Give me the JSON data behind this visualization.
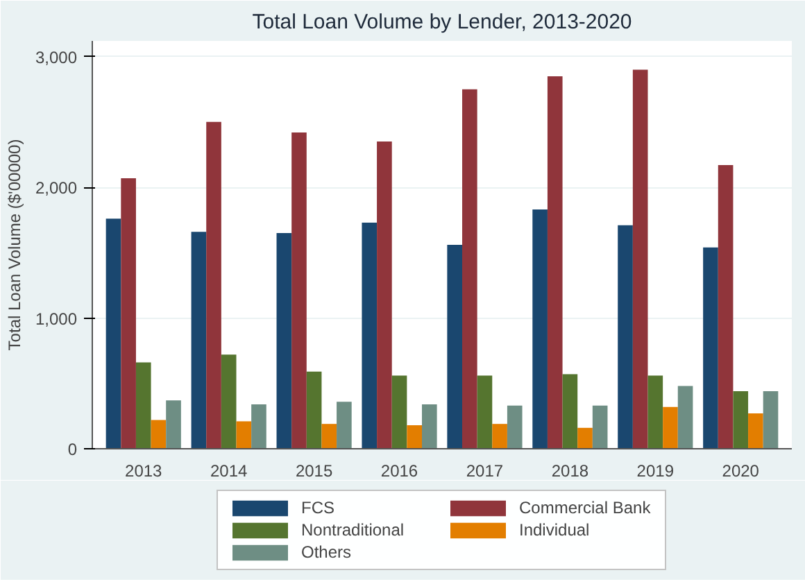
{
  "chart_data": {
    "type": "bar",
    "title": "Total Loan Volume by Lender, 2013-2020",
    "ylabel": "Total Loan Volume ($'00000)",
    "categories": [
      "2013",
      "2014",
      "2015",
      "2016",
      "2017",
      "2018",
      "2019",
      "2020"
    ],
    "series": [
      {
        "name": "FCS",
        "color": "#1a476f",
        "values": [
          1760,
          1660,
          1650,
          1730,
          1560,
          1830,
          1710,
          1540
        ]
      },
      {
        "name": "Commercial Bank",
        "color": "#90353b",
        "values": [
          2070,
          2500,
          2420,
          2350,
          2750,
          2850,
          2900,
          2170
        ]
      },
      {
        "name": "Nontraditional",
        "color": "#55752f",
        "values": [
          660,
          720,
          590,
          560,
          560,
          570,
          560,
          440
        ]
      },
      {
        "name": "Individual",
        "color": "#e37e00",
        "values": [
          220,
          210,
          190,
          180,
          190,
          160,
          320,
          270
        ]
      },
      {
        "name": "Others",
        "color": "#6e8e84",
        "values": [
          370,
          340,
          360,
          340,
          330,
          330,
          480,
          440
        ]
      }
    ],
    "ylim": [
      0,
      3120
    ],
    "yticks": [
      0,
      {
        "value": 1000,
        "label": "1,000"
      },
      {
        "value": 2000,
        "label": "2,000"
      },
      {
        "value": 3000,
        "label": "3,000"
      }
    ],
    "grid": "y",
    "legend": "bottom"
  }
}
